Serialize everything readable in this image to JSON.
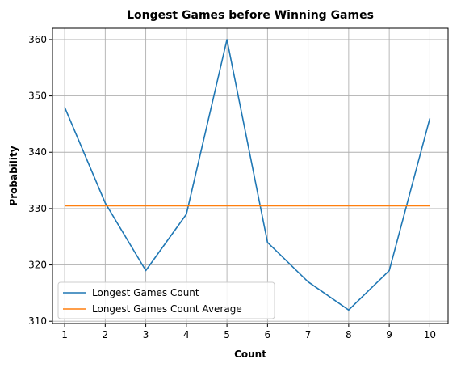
{
  "chart_data": {
    "type": "line",
    "title": "Longest Games before Winning Games",
    "xlabel": "Count",
    "ylabel": "Probability",
    "x": [
      1,
      2,
      3,
      4,
      5,
      6,
      7,
      8,
      9,
      10
    ],
    "xticks": [
      "1",
      "2",
      "3",
      "4",
      "5",
      "6",
      "7",
      "8",
      "9",
      "10"
    ],
    "yticks": [
      "310",
      "320",
      "330",
      "340",
      "350",
      "360"
    ],
    "xlim": [
      0.7,
      10.45
    ],
    "ylim": [
      309.6,
      362.0
    ],
    "grid": true,
    "legend_position": "lower-left",
    "series": [
      {
        "name": "Longest Games Count",
        "color": "#1f77b4",
        "values": [
          348,
          331,
          319,
          329,
          360,
          324,
          317,
          312,
          319,
          346
        ]
      },
      {
        "name": "Longest Games Count Average",
        "color": "#ff7f0e",
        "values": [
          330.5,
          330.5,
          330.5,
          330.5,
          330.5,
          330.5,
          330.5,
          330.5,
          330.5,
          330.5
        ]
      }
    ]
  }
}
